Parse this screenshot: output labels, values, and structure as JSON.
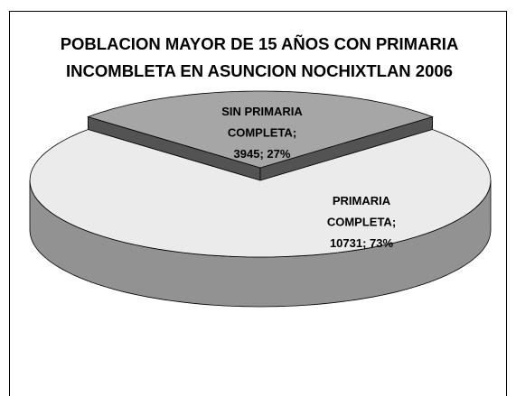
{
  "chart_data": {
    "type": "pie",
    "three_d": true,
    "title": "POBLACION MAYOR DE 15 AÑOS CON PRIMARIA INCOMBLETA EN ASUNCION NOCHIXTLAN 2006",
    "values": [
      3945,
      10731
    ],
    "value_labels": [
      "SIN PRIMARIA COMPLETA; 3945; 27%",
      "PRIMARIA COMPLETA; 10731; 73%"
    ],
    "colors": [
      "#a6a6a6",
      "#ebebeb"
    ]
  }
}
